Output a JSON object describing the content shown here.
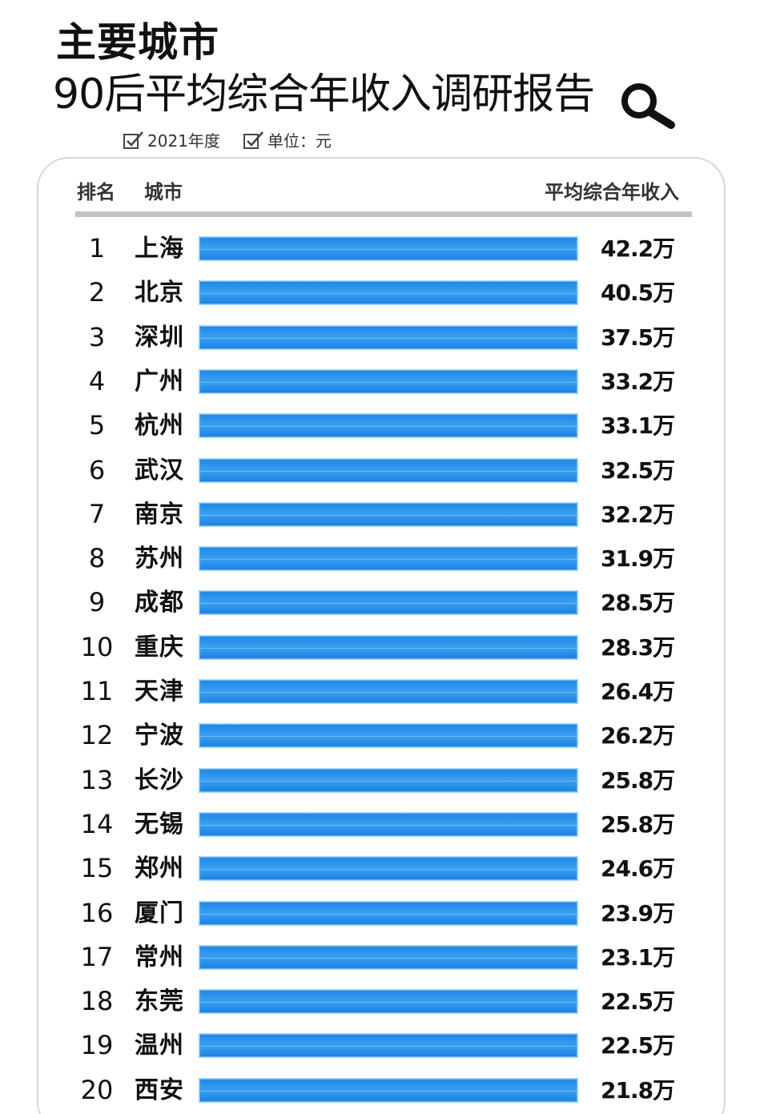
{
  "header": {
    "title_line1": "主要城市",
    "title_line2": "90后平均综合年收入调研报告",
    "meta_year": "2021年度",
    "meta_unit": "单位：元"
  },
  "table_header": {
    "rank": "排名",
    "city": "城市",
    "income": "平均综合年收入"
  },
  "chart_data": {
    "type": "bar",
    "orientation": "horizontal",
    "title": "主要城市 90后平均综合年收入调研报告",
    "categories": [
      "上海",
      "北京",
      "深圳",
      "广州",
      "杭州",
      "武汉",
      "南京",
      "苏州",
      "成都",
      "重庆",
      "天津",
      "宁波",
      "长沙",
      "无锡",
      "郑州",
      "厦门",
      "常州",
      "东莞",
      "温州",
      "西安"
    ],
    "ranks": [
      "1",
      "2",
      "3",
      "4",
      "5",
      "6",
      "7",
      "8",
      "9",
      "10",
      "11",
      "12",
      "13",
      "14",
      "15",
      "16",
      "17",
      "18",
      "19",
      "20"
    ],
    "values": [
      42.2,
      40.5,
      37.5,
      33.2,
      33.1,
      32.5,
      32.2,
      31.9,
      28.5,
      28.3,
      26.4,
      26.2,
      25.8,
      25.8,
      24.6,
      23.9,
      23.1,
      22.5,
      22.5,
      21.8
    ],
    "value_labels": [
      "42.2万",
      "40.5万",
      "37.5万",
      "33.2万",
      "33.1万",
      "32.5万",
      "32.2万",
      "31.9万",
      "28.5万",
      "28.3万",
      "26.4万",
      "26.2万",
      "25.8万",
      "25.8万",
      "24.6万",
      "23.9万",
      "23.1万",
      "22.5万",
      "22.5万",
      "21.8万"
    ],
    "bar_color": "#2a8ee8"
  },
  "colors": {
    "bar": "#2a8ee8",
    "rule": "#c2c2c2",
    "panel_border": "#d6d6d6"
  }
}
